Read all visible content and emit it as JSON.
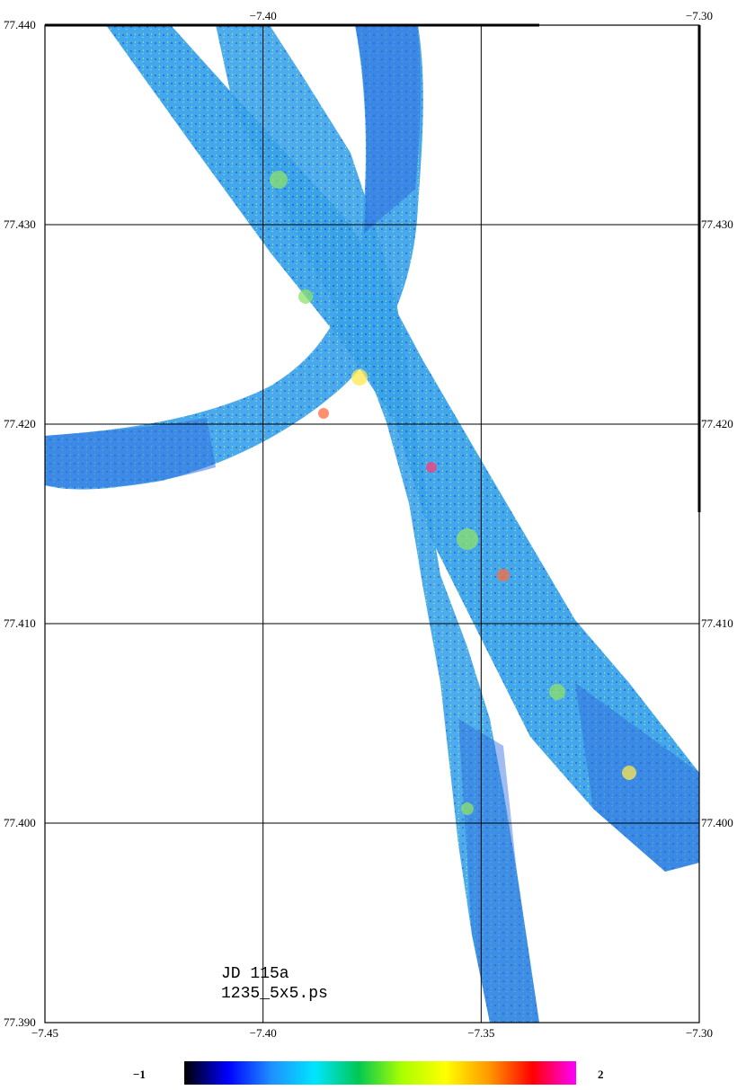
{
  "map": {
    "x_axis": {
      "range": [
        -7.45,
        -7.3
      ],
      "bottom_ticks": [
        "-7.45",
        "-7.40",
        "-7.35",
        "-7.30"
      ],
      "top_ticks": [
        "-7.40",
        "-7.30"
      ]
    },
    "y_axis": {
      "range": [
        77.39,
        77.44
      ],
      "left_ticks": [
        "77.440",
        "77.430",
        "77.420",
        "77.410",
        "77.400",
        "77.390"
      ],
      "right_ticks": [
        "77.430",
        "77.420",
        "77.410",
        "77.400"
      ]
    },
    "grid": true,
    "annotation": {
      "line1": "JD 115a",
      "line2": "1235_5x5.ps"
    },
    "colorbar": {
      "min_label": "−1",
      "max_label": "2",
      "colors": [
        "#000000",
        "#0000ff",
        "#1e90ff",
        "#00e5ff",
        "#00c853",
        "#aaff00",
        "#ffff00",
        "#ff9800",
        "#ff0000",
        "#ff00ff"
      ]
    },
    "swath_colors": {
      "base": "#2f6fe0",
      "mid": "#2ab0e8",
      "hot": "#7fe060"
    }
  }
}
